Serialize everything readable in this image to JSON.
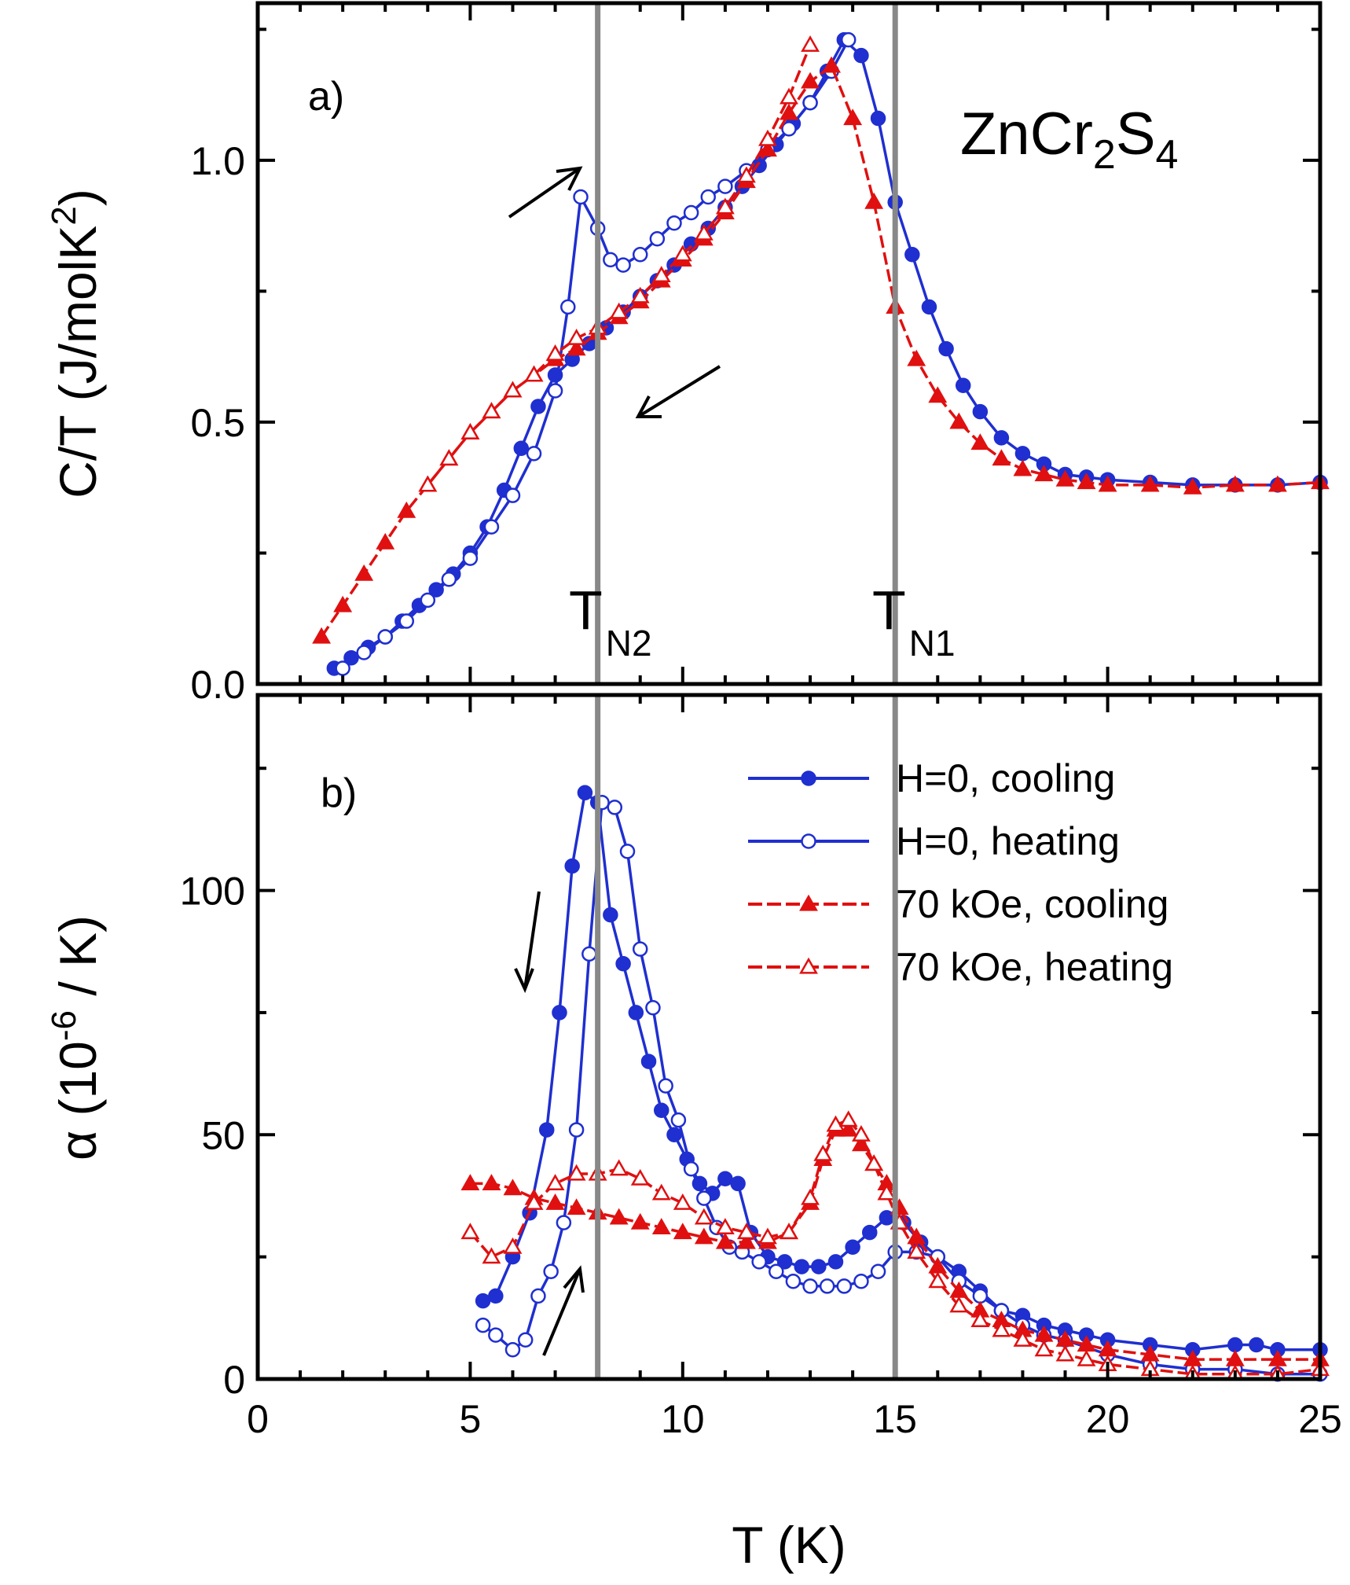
{
  "chart_data": [
    {
      "panel": "a)",
      "type": "line",
      "compound_label": {
        "base": "ZnCr",
        "sub1": "2",
        "mid": "S",
        "sub2": "4"
      },
      "ylabel": {
        "main": "C/T (J/molK",
        "sup": "2",
        "tail": ")"
      },
      "xlim": [
        0,
        25
      ],
      "ylim": [
        0,
        1.3
      ],
      "y_ticks": [
        "0.0",
        "0.5",
        "1.0"
      ],
      "markers": [
        {
          "main": "T",
          "sub": "N2",
          "x": 8
        },
        {
          "main": "T",
          "sub": "N1",
          "x": 15
        }
      ],
      "series": [
        {
          "name": "H=0, cooling",
          "color": "#1f2fd0",
          "marker": "circle-filled",
          "x": [
            1.8,
            2.2,
            2.6,
            3.0,
            3.4,
            3.8,
            4.2,
            4.6,
            5.0,
            5.4,
            5.8,
            6.2,
            6.6,
            7.0,
            7.4,
            7.8,
            8.2,
            8.6,
            9.0,
            9.4,
            9.8,
            10.2,
            10.6,
            11.0,
            11.4,
            11.8,
            12.2,
            12.6,
            13.0,
            13.4,
            13.8,
            14.2,
            14.6,
            15.0,
            15.4,
            15.8,
            16.2,
            16.6,
            17.0,
            17.5,
            18.0,
            18.5,
            19.0,
            19.5,
            20.0,
            21.0,
            22.0,
            23.0,
            24.0,
            25.0
          ],
          "y": [
            0.03,
            0.05,
            0.07,
            0.09,
            0.12,
            0.15,
            0.18,
            0.21,
            0.25,
            0.3,
            0.37,
            0.45,
            0.53,
            0.59,
            0.62,
            0.65,
            0.68,
            0.71,
            0.74,
            0.77,
            0.8,
            0.84,
            0.87,
            0.91,
            0.95,
            0.99,
            1.03,
            1.07,
            1.11,
            1.17,
            1.23,
            1.2,
            1.08,
            0.92,
            0.82,
            0.72,
            0.64,
            0.57,
            0.52,
            0.47,
            0.44,
            0.42,
            0.4,
            0.395,
            0.39,
            0.385,
            0.38,
            0.38,
            0.38,
            0.385
          ]
        },
        {
          "name": "H=0, heating",
          "color": "#1f2fd0",
          "marker": "circle-open",
          "x": [
            2.0,
            2.5,
            3.0,
            3.5,
            4.0,
            4.5,
            5.0,
            5.5,
            6.0,
            6.5,
            7.0,
            7.3,
            7.6,
            8.0,
            8.3,
            8.6,
            9.0,
            9.4,
            9.8,
            10.2,
            10.6,
            11.0,
            11.5,
            12.0,
            12.5,
            13.0,
            13.5,
            13.9
          ],
          "y": [
            0.03,
            0.06,
            0.09,
            0.12,
            0.16,
            0.2,
            0.24,
            0.3,
            0.36,
            0.44,
            0.56,
            0.72,
            0.93,
            0.87,
            0.81,
            0.8,
            0.82,
            0.85,
            0.88,
            0.9,
            0.93,
            0.95,
            0.98,
            1.02,
            1.06,
            1.11,
            1.17,
            1.23
          ]
        },
        {
          "name": "70 kOe, cooling",
          "color": "#e01010",
          "marker": "triangle-filled",
          "x": [
            1.5,
            2.0,
            2.5,
            3.0,
            3.5,
            4.0,
            4.5,
            5.0,
            5.5,
            6.0,
            6.5,
            7.0,
            7.5,
            8.0,
            8.5,
            9.0,
            9.5,
            10.0,
            10.5,
            11.0,
            11.5,
            12.0,
            12.5,
            13.0,
            13.5,
            14.0,
            14.5,
            15.0,
            15.5,
            16.0,
            16.5,
            17.0,
            17.5,
            18.0,
            18.5,
            19.0,
            19.5,
            20.0,
            21.0,
            22.0,
            23.0,
            24.0,
            25.0
          ],
          "y": [
            0.09,
            0.15,
            0.21,
            0.27,
            0.33,
            0.38,
            0.43,
            0.48,
            0.52,
            0.56,
            0.59,
            0.62,
            0.64,
            0.67,
            0.7,
            0.73,
            0.77,
            0.81,
            0.85,
            0.9,
            0.96,
            1.02,
            1.09,
            1.15,
            1.18,
            1.08,
            0.92,
            0.72,
            0.62,
            0.55,
            0.5,
            0.46,
            0.43,
            0.41,
            0.4,
            0.39,
            0.385,
            0.38,
            0.38,
            0.375,
            0.38,
            0.38,
            0.385
          ]
        },
        {
          "name": "70 kOe, heating",
          "color": "#e01010",
          "marker": "triangle-open",
          "x": [
            4.0,
            4.5,
            5.0,
            5.5,
            6.0,
            6.5,
            7.0,
            7.5,
            8.0,
            8.5,
            9.0,
            9.5,
            10.0,
            10.5,
            11.0,
            11.5,
            12.0,
            12.5,
            13.0
          ],
          "y": [
            0.38,
            0.43,
            0.48,
            0.52,
            0.56,
            0.59,
            0.63,
            0.66,
            0.68,
            0.71,
            0.74,
            0.78,
            0.82,
            0.86,
            0.91,
            0.97,
            1.04,
            1.12,
            1.22
          ]
        }
      ]
    },
    {
      "panel": "b)",
      "type": "line",
      "ylabel": {
        "main": "α (10",
        "sup": "-6",
        "tail": " / K)"
      },
      "xlabel": "T (K)",
      "xlim": [
        0,
        25
      ],
      "ylim": [
        0,
        140
      ],
      "x_ticks": [
        "0",
        "5",
        "10",
        "15",
        "20",
        "25"
      ],
      "y_ticks": [
        "0",
        "50",
        "100"
      ],
      "legend_position": "top-right",
      "series": [
        {
          "name": "H=0, cooling",
          "color": "#1f2fd0",
          "marker": "circle-filled",
          "x": [
            5.3,
            5.6,
            6.0,
            6.4,
            6.8,
            7.1,
            7.4,
            7.7,
            8.0,
            8.3,
            8.6,
            8.9,
            9.2,
            9.5,
            9.8,
            10.1,
            10.4,
            10.7,
            11.0,
            11.3,
            11.6,
            12.0,
            12.4,
            12.8,
            13.2,
            13.6,
            14.0,
            14.4,
            14.8,
            15.2,
            15.6,
            16.0,
            16.5,
            17.0,
            17.5,
            18.0,
            18.5,
            19.0,
            19.5,
            20.0,
            21.0,
            22.0,
            23.0,
            23.5,
            24.0,
            25.0
          ],
          "y": [
            16,
            17,
            25,
            34,
            51,
            75,
            105,
            120,
            118,
            95,
            85,
            75,
            65,
            55,
            50,
            45,
            40,
            38,
            41,
            40,
            30,
            25,
            24,
            23,
            23,
            24,
            27,
            30,
            33,
            32,
            28,
            25,
            22,
            18,
            14,
            13,
            11,
            10,
            9,
            8,
            7,
            6,
            7,
            7,
            6,
            6
          ]
        },
        {
          "name": "H=0, heating",
          "color": "#1f2fd0",
          "marker": "circle-open",
          "x": [
            5.3,
            5.6,
            6.0,
            6.3,
            6.6,
            6.9,
            7.2,
            7.5,
            7.8,
            8.1,
            8.4,
            8.7,
            9.0,
            9.3,
            9.6,
            9.9,
            10.2,
            10.5,
            10.8,
            11.1,
            11.4,
            11.8,
            12.2,
            12.6,
            13.0,
            13.4,
            13.8,
            14.2,
            14.6,
            15.0,
            15.5,
            16.0,
            16.5,
            17.0,
            17.5,
            18.0,
            18.5,
            19.0,
            20.0,
            21.0,
            22.0,
            23.0,
            24.0,
            25.0
          ],
          "y": [
            11,
            9,
            6,
            8,
            17,
            22,
            32,
            51,
            87,
            118,
            117,
            108,
            88,
            76,
            60,
            53,
            43,
            37,
            31,
            27,
            26,
            24,
            22,
            20,
            19,
            19,
            19,
            20,
            22,
            26,
            26,
            25,
            20,
            17,
            14,
            11,
            9,
            8,
            5,
            3,
            2,
            2,
            1,
            1
          ]
        },
        {
          "name": "70 kOe, cooling",
          "color": "#e01010",
          "marker": "triangle-filled",
          "x": [
            5.0,
            5.5,
            6.0,
            6.5,
            7.0,
            7.5,
            8.0,
            8.5,
            9.0,
            9.5,
            10.0,
            10.5,
            11.0,
            11.5,
            12.0,
            12.5,
            13.0,
            13.3,
            13.6,
            13.9,
            14.2,
            14.5,
            14.8,
            15.1,
            15.5,
            16.0,
            16.5,
            17.0,
            17.5,
            18.0,
            18.5,
            19.0,
            19.5,
            20.0,
            21.0,
            22.0,
            23.0,
            24.0,
            25.0
          ],
          "y": [
            40,
            40,
            39,
            37,
            36,
            35,
            34,
            33,
            32,
            31,
            30,
            29,
            28,
            28,
            28,
            30,
            36,
            45,
            51,
            51,
            48,
            44,
            40,
            35,
            29,
            23,
            18,
            14,
            12,
            10,
            9,
            8,
            7,
            6,
            5,
            4,
            4,
            4,
            4
          ]
        },
        {
          "name": "70 kOe, heating",
          "color": "#e01010",
          "marker": "triangle-open",
          "x": [
            5.0,
            5.5,
            6.0,
            6.5,
            7.0,
            7.5,
            8.0,
            8.5,
            9.0,
            9.5,
            10.0,
            10.5,
            11.0,
            11.5,
            12.0,
            12.5,
            13.0,
            13.3,
            13.6,
            13.9,
            14.2,
            14.5,
            14.8,
            15.1,
            15.5,
            16.0,
            16.5,
            17.0,
            17.5,
            18.0,
            18.5,
            19.0,
            19.5,
            20.0,
            21.0,
            22.0,
            23.0,
            24.0,
            25.0
          ],
          "y": [
            30,
            25,
            27,
            36,
            40,
            42,
            42,
            43,
            41,
            38,
            36,
            33,
            31,
            30,
            29,
            30,
            37,
            46,
            52,
            53,
            50,
            44,
            38,
            32,
            26,
            20,
            15,
            12,
            10,
            8,
            6,
            5,
            4,
            3,
            2,
            1,
            1,
            1,
            2
          ]
        }
      ]
    }
  ],
  "annotations": {
    "arrows": [
      {
        "panel": "a)",
        "direction": "up-right"
      },
      {
        "panel": "a)",
        "direction": "down-left"
      },
      {
        "panel": "b)",
        "direction": "down"
      },
      {
        "panel": "b)",
        "direction": "up-right"
      }
    ],
    "arrow_color": "#000000",
    "marker_line_color": "#888888"
  }
}
